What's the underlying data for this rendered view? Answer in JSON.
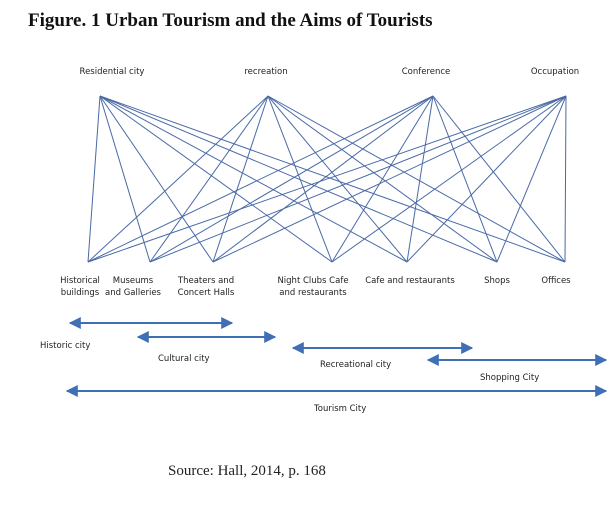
{
  "title": "Figure. 1 Urban Tourism and the Aims of Tourists",
  "aims": [
    "Residential city",
    "recreation",
    "Conference",
    "Occupation"
  ],
  "destinations": [
    "Historical\nbuildings",
    "Museums\nand Galleries",
    "Theaters and\nConcert Halls",
    "Night Clubs  Cafe\nand restaurants",
    "Cafe and restaurants",
    "Shops",
    "Offices"
  ],
  "city_types": [
    "Historic city",
    "Cultural city",
    "Recreational city",
    "Shopping City",
    "Tourism City"
  ],
  "source": "Source: Hall, 2014, p. 168",
  "colors": {
    "lines": "#4a6aa6",
    "arrows": "#3f6fb5",
    "text": "#222222"
  }
}
